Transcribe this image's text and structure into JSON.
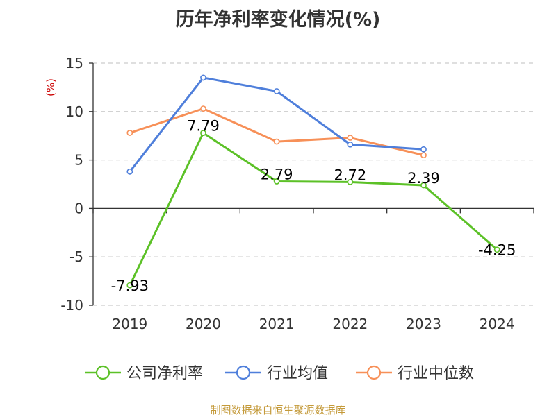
{
  "chart_data": {
    "type": "line",
    "title": "历年净利率变化情况(%)",
    "ylabel": "(%)",
    "xlabel": "",
    "categories": [
      "2019",
      "2020",
      "2021",
      "2022",
      "2023",
      "2024"
    ],
    "ylim": [
      -10,
      15
    ],
    "yticks": [
      -10,
      -5,
      0,
      5,
      10,
      15
    ],
    "ytick_labels": [
      "-10",
      "-5",
      "0",
      "5",
      "10",
      "15"
    ],
    "grid": "horizontal dashed",
    "legend_position": "bottom",
    "series": [
      {
        "name": "公司净利率",
        "color": "#5cc127",
        "values": [
          -7.93,
          7.79,
          2.79,
          2.72,
          2.39,
          -4.25
        ],
        "labels": [
          "-7.93",
          "7.79",
          "2.79",
          "2.72",
          "2.39",
          "-4.25"
        ]
      },
      {
        "name": "行业均值",
        "color": "#4f7fdb",
        "values": [
          3.8,
          13.5,
          12.1,
          6.6,
          6.1,
          null
        ]
      },
      {
        "name": "行业中位数",
        "color": "#f79058",
        "values": [
          7.8,
          10.3,
          6.9,
          7.3,
          5.5,
          null
        ]
      }
    ]
  },
  "ylabel_color": "#cc0000",
  "source": "制图数据来自恒生聚源数据库"
}
